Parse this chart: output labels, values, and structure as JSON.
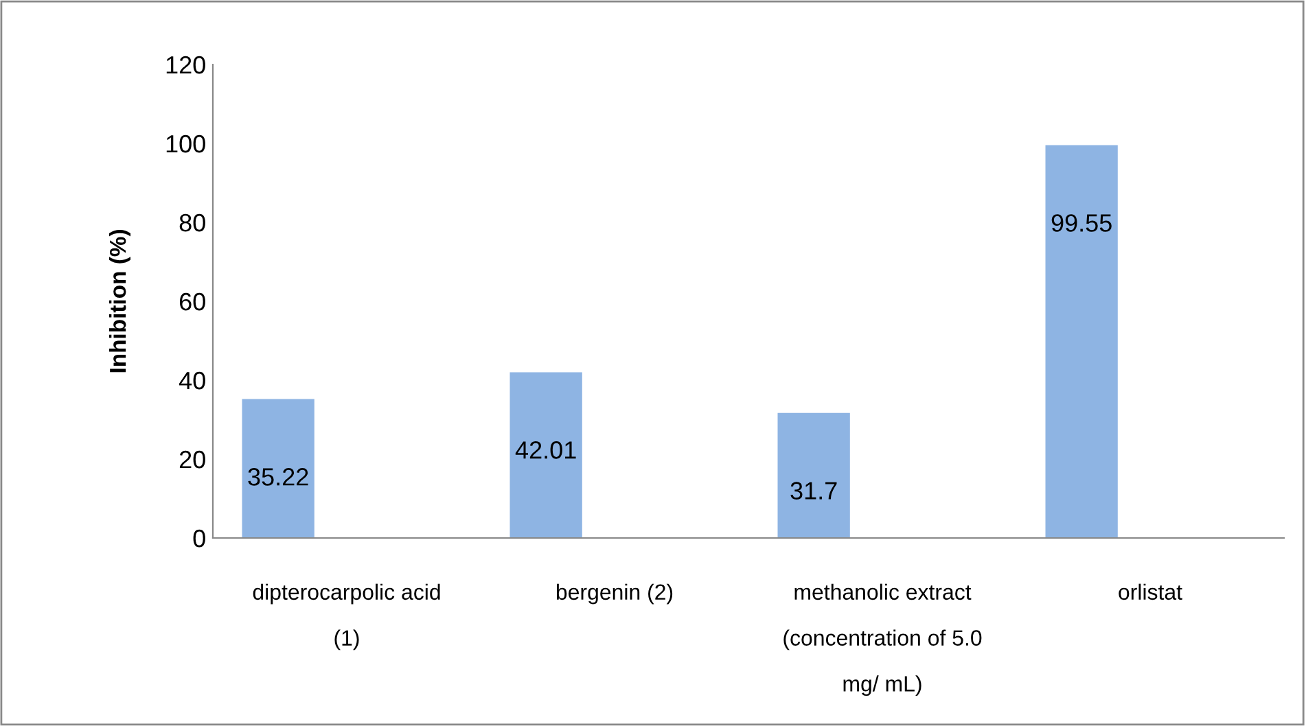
{
  "chart_data": {
    "type": "bar",
    "ylabel": "Inhibition (%)",
    "categories": [
      "dipterocarpolic acid\n(1)",
      "bergenin (2)",
      "methanolic extract\n(concentration of 5.0\nmg/ mL)",
      "orlistat"
    ],
    "values": [
      35.22,
      42.01,
      31.7,
      99.55
    ],
    "color": "#8eb4e3",
    "ylim": [
      0,
      120
    ],
    "yticks": [
      0,
      20,
      40,
      60,
      80,
      100,
      120
    ],
    "grid": false,
    "data_labels": true
  }
}
